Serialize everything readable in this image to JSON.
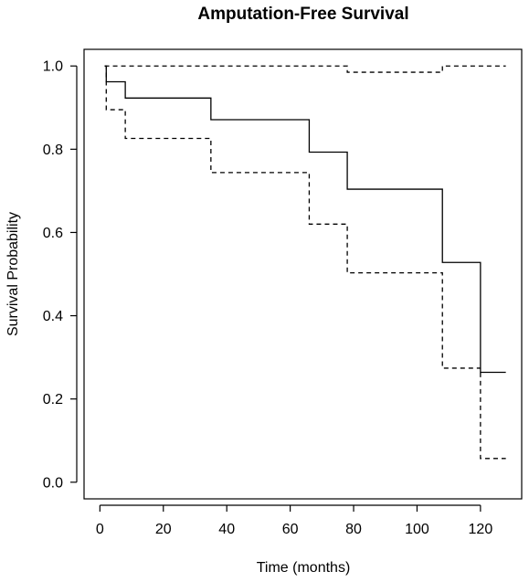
{
  "chart_data": {
    "type": "line",
    "subtype": "step",
    "title": "Amputation-Free Survival",
    "xlabel": "Time (months)",
    "ylabel": "Survival Probability",
    "xlim": [
      -5,
      133
    ],
    "ylim": [
      -0.04,
      1.04
    ],
    "xticks": [
      0,
      20,
      40,
      60,
      80,
      100,
      120
    ],
    "yticks": [
      0.0,
      0.2,
      0.4,
      0.6,
      0.8,
      1.0
    ],
    "xtick_labels": [
      "0",
      "20",
      "40",
      "60",
      "80",
      "100",
      "120"
    ],
    "ytick_labels": [
      "0.0",
      "0.2",
      "0.4",
      "0.6",
      "0.8",
      "1.0"
    ],
    "grid": false,
    "legend": "none",
    "series": [
      {
        "style": "solid",
        "color": "#000000",
        "x": [
          1.5,
          2,
          8,
          35,
          66,
          78,
          108,
          120,
          128
        ],
        "y": [
          1.0,
          0.962,
          0.923,
          0.871,
          0.793,
          0.704,
          0.528,
          0.264,
          0.264
        ]
      },
      {
        "style": "dashed",
        "color": "#000000",
        "x": [
          1.5,
          2,
          8,
          35,
          66,
          78,
          108,
          120,
          128
        ],
        "y": [
          1.0,
          0.895,
          0.826,
          0.744,
          0.62,
          0.503,
          0.274,
          0.057,
          0.057
        ]
      },
      {
        "style": "dashed",
        "color": "#000000",
        "x": [
          1.5,
          78,
          108,
          128
        ],
        "y": [
          1.0,
          0.985,
          1.0,
          1.0
        ]
      }
    ]
  }
}
